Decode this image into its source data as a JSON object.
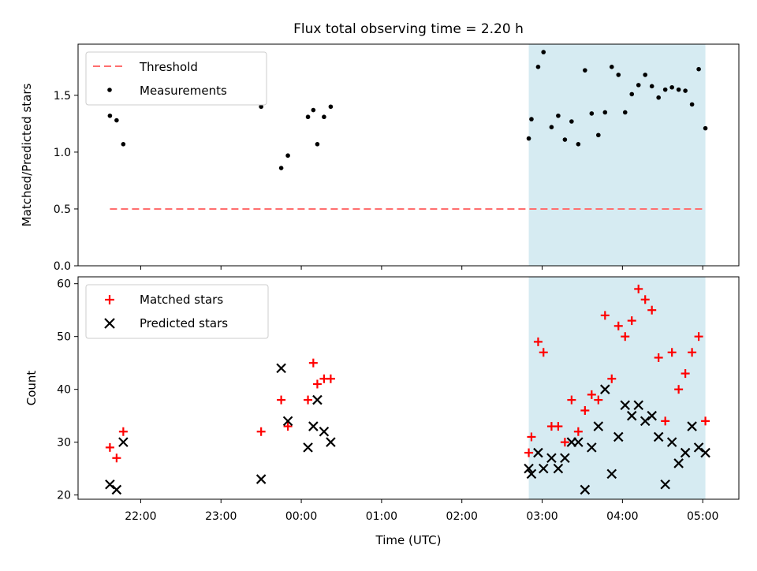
{
  "figure": {
    "title": "Flux total observing time = 2.20 h"
  },
  "chart_data": [
    {
      "type": "scatter",
      "ylabel": "Matched/Predicted stars",
      "ylim": [
        0,
        1.95
      ],
      "y_ticks": [
        "0.0",
        "0.5",
        "1.0",
        "1.5"
      ],
      "y_tick_values": [
        0,
        0.5,
        1.0,
        1.5
      ],
      "grid": false,
      "legend_position": "top-left",
      "legend": [
        "Threshold",
        "Measurements"
      ],
      "highlight_span": {
        "from": "02:50",
        "to": "05:02",
        "color": "#add8e6"
      },
      "threshold": {
        "name": "Threshold",
        "value": 0.5,
        "from": "21:37",
        "to": "05:01",
        "color": "#ff6f6f"
      },
      "series": [
        {
          "name": "Measurements",
          "color": "#000000",
          "points": [
            [
              "21:37",
              1.32
            ],
            [
              "21:42",
              1.28
            ],
            [
              "21:47",
              1.07
            ],
            [
              "23:30",
              1.4
            ],
            [
              "23:45",
              0.86
            ],
            [
              "23:50",
              0.97
            ],
            [
              "00:05",
              1.31
            ],
            [
              "00:09",
              1.37
            ],
            [
              "00:12",
              1.07
            ],
            [
              "00:17",
              1.31
            ],
            [
              "00:22",
              1.4
            ],
            [
              "02:50",
              1.12
            ],
            [
              "02:52",
              1.29
            ],
            [
              "02:57",
              1.75
            ],
            [
              "03:01",
              1.88
            ],
            [
              "03:07",
              1.22
            ],
            [
              "03:12",
              1.32
            ],
            [
              "03:17",
              1.11
            ],
            [
              "03:22",
              1.27
            ],
            [
              "03:27",
              1.07
            ],
            [
              "03:32",
              1.72
            ],
            [
              "03:37",
              1.34
            ],
            [
              "03:42",
              1.15
            ],
            [
              "03:47",
              1.35
            ],
            [
              "03:52",
              1.75
            ],
            [
              "03:57",
              1.68
            ],
            [
              "04:02",
              1.35
            ],
            [
              "04:07",
              1.51
            ],
            [
              "04:12",
              1.59
            ],
            [
              "04:17",
              1.68
            ],
            [
              "04:22",
              1.58
            ],
            [
              "04:27",
              1.48
            ],
            [
              "04:32",
              1.55
            ],
            [
              "04:37",
              1.57
            ],
            [
              "04:42",
              1.55
            ],
            [
              "04:47",
              1.54
            ],
            [
              "04:52",
              1.42
            ],
            [
              "04:57",
              1.73
            ],
            [
              "05:02",
              1.21
            ]
          ]
        }
      ]
    },
    {
      "type": "scatter",
      "xlabel": "Time (UTC)",
      "ylabel": "Count",
      "ylim": [
        19.2,
        61.3
      ],
      "y_ticks": [
        "20",
        "30",
        "40",
        "50",
        "60"
      ],
      "y_tick_values": [
        20,
        30,
        40,
        50,
        60
      ],
      "x_ticks": [
        "22:00",
        "23:00",
        "00:00",
        "01:00",
        "02:00",
        "03:00",
        "04:00",
        "05:00"
      ],
      "grid": false,
      "legend_position": "top-left",
      "legend": [
        "Matched stars",
        "Predicted stars"
      ],
      "highlight_span": {
        "from": "02:50",
        "to": "05:02",
        "color": "#add8e6"
      },
      "series": [
        {
          "name": "Matched stars",
          "marker": "plus",
          "color": "#ff0000",
          "points": [
            [
              "21:37",
              29
            ],
            [
              "21:42",
              27
            ],
            [
              "21:47",
              32
            ],
            [
              "23:30",
              32
            ],
            [
              "23:45",
              38
            ],
            [
              "23:50",
              33
            ],
            [
              "00:05",
              38
            ],
            [
              "00:09",
              45
            ],
            [
              "00:12",
              41
            ],
            [
              "00:17",
              42
            ],
            [
              "00:22",
              42
            ],
            [
              "02:50",
              28
            ],
            [
              "02:52",
              31
            ],
            [
              "02:57",
              49
            ],
            [
              "03:01",
              47
            ],
            [
              "03:07",
              33
            ],
            [
              "03:12",
              33
            ],
            [
              "03:17",
              30
            ],
            [
              "03:22",
              38
            ],
            [
              "03:27",
              32
            ],
            [
              "03:32",
              36
            ],
            [
              "03:37",
              39
            ],
            [
              "03:42",
              38
            ],
            [
              "03:47",
              54
            ],
            [
              "03:52",
              42
            ],
            [
              "03:57",
              52
            ],
            [
              "04:02",
              50
            ],
            [
              "04:07",
              53
            ],
            [
              "04:12",
              59
            ],
            [
              "04:17",
              57
            ],
            [
              "04:22",
              55
            ],
            [
              "04:27",
              46
            ],
            [
              "04:32",
              34
            ],
            [
              "04:37",
              47
            ],
            [
              "04:42",
              40
            ],
            [
              "04:47",
              43
            ],
            [
              "04:52",
              47
            ],
            [
              "04:57",
              50
            ],
            [
              "05:02",
              34
            ]
          ]
        },
        {
          "name": "Predicted stars",
          "marker": "cross",
          "color": "#000000",
          "points": [
            [
              "21:37",
              22
            ],
            [
              "21:42",
              21
            ],
            [
              "21:47",
              30
            ],
            [
              "23:30",
              23
            ],
            [
              "23:45",
              44
            ],
            [
              "23:50",
              34
            ],
            [
              "00:05",
              29
            ],
            [
              "00:09",
              33
            ],
            [
              "00:12",
              38
            ],
            [
              "00:17",
              32
            ],
            [
              "00:22",
              30
            ],
            [
              "02:50",
              25
            ],
            [
              "02:52",
              24
            ],
            [
              "02:57",
              28
            ],
            [
              "03:01",
              25
            ],
            [
              "03:07",
              27
            ],
            [
              "03:12",
              25
            ],
            [
              "03:17",
              27
            ],
            [
              "03:22",
              30
            ],
            [
              "03:27",
              30
            ],
            [
              "03:32",
              21
            ],
            [
              "03:37",
              29
            ],
            [
              "03:42",
              33
            ],
            [
              "03:47",
              40
            ],
            [
              "03:52",
              24
            ],
            [
              "03:57",
              31
            ],
            [
              "04:02",
              37
            ],
            [
              "04:07",
              35
            ],
            [
              "04:12",
              37
            ],
            [
              "04:17",
              34
            ],
            [
              "04:22",
              35
            ],
            [
              "04:27",
              31
            ],
            [
              "04:32",
              22
            ],
            [
              "04:37",
              30
            ],
            [
              "04:42",
              26
            ],
            [
              "04:47",
              28
            ],
            [
              "04:52",
              33
            ],
            [
              "04:57",
              29
            ],
            [
              "05:02",
              28
            ]
          ]
        }
      ]
    }
  ]
}
